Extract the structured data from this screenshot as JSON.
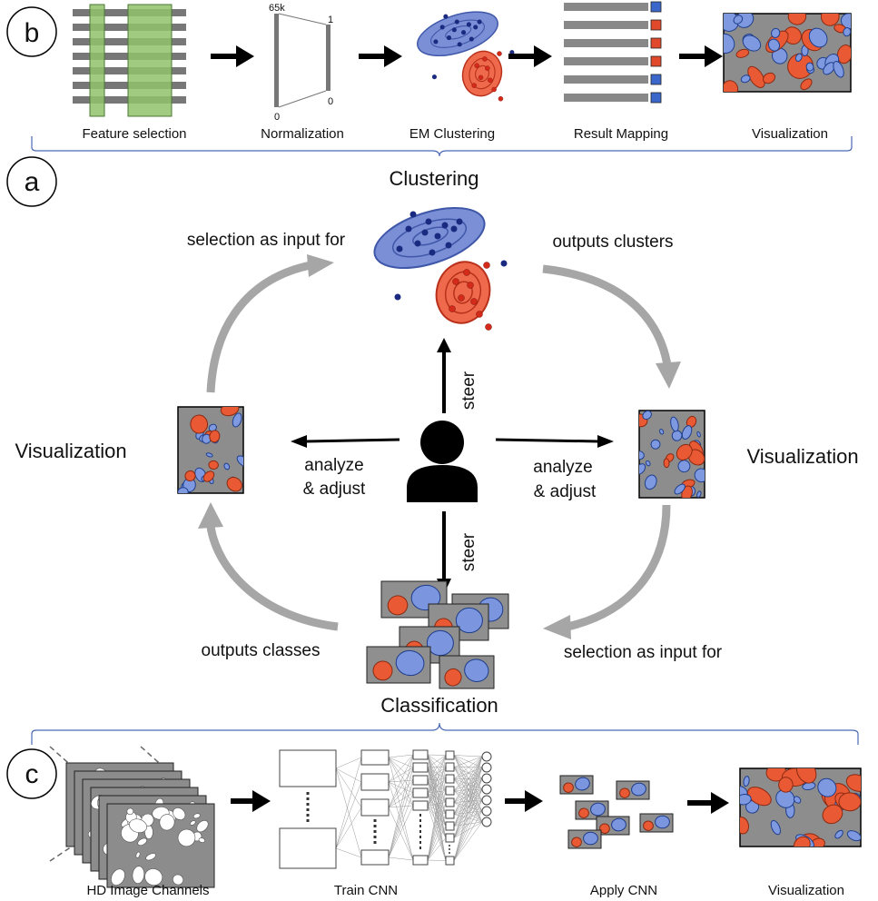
{
  "labels": {
    "panel_b": "b",
    "panel_a": "a",
    "panel_c": "c",
    "b_feature_selection": "Feature  selection",
    "b_normalization": "Normalization",
    "b_norm_top_left": "65k",
    "b_norm_bottom_left": "0",
    "b_norm_top_right": "1",
    "b_norm_bottom_right": "0",
    "b_em_clustering": "EM Clustering",
    "b_result_mapping": "Result Mapping",
    "b_visualization": "Visualization",
    "a_clustering": "Clustering",
    "a_selection_top": "selection  as input for",
    "a_outputs_clusters": "outputs clusters",
    "a_visualization_left": "Visualization",
    "a_visualization_right": "Visualization",
    "a_analyze_left_1": "analyze",
    "a_analyze_left_2": "& adjust",
    "a_analyze_right_1": "analyze",
    "a_analyze_right_2": "& adjust",
    "a_steer_top": "steer",
    "a_steer_bottom": "steer",
    "a_outputs_classes": "outputs classes",
    "a_selection_bottom": "selection  as input for",
    "a_classification": "Classification",
    "c_hd_image_channels": "HD Image Channels",
    "c_train_cnn": "Train CNN",
    "c_apply_cnn": "Apply CNN",
    "c_visualization": "Visualization"
  },
  "colors": {
    "cluster_blue": "#3f57a8",
    "cluster_blue_light": "#7b8fd6",
    "cluster_red": "#e0492c",
    "dot_blue": "#1a2a80",
    "dot_red": "#d42a1a",
    "tissue_gray": "#8d8d8d",
    "cycle_arrow": "#a6a6a6",
    "feature_green": "#8fc26b",
    "bracket_blue": "#4b6ab3"
  }
}
